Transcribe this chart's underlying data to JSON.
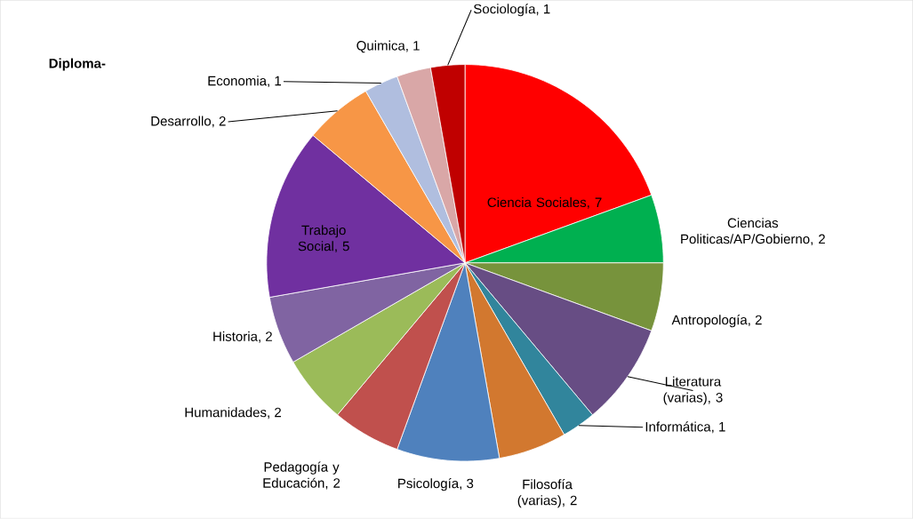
{
  "chart_data": {
    "type": "pie",
    "title": "Diploma-",
    "categories": [
      "Ciencia Sociales",
      "Ciencias Politicas/AP/Gobierno",
      "Antropología",
      "Literatura (varias)",
      "Informática",
      "Filosofía (varias)",
      "Psicología",
      "Pedagogía y Educación",
      "Humanidades",
      "Historia",
      "Trabajo Social",
      "Desarrollo",
      "Economia",
      "Quimica",
      "Sociología"
    ],
    "values": [
      7,
      2,
      2,
      3,
      1,
      2,
      3,
      2,
      2,
      2,
      5,
      2,
      1,
      1,
      1
    ],
    "colors": [
      "#ff0000",
      "#00b050",
      "#77933c",
      "#674d84",
      "#31859c",
      "#d2782f",
      "#4f81bd",
      "#c0504d",
      "#9bbb59",
      "#8064a2",
      "#7030a0",
      "#f79646",
      "#b0bedf",
      "#d9a7a7",
      "#c00000"
    ],
    "value_labels": [
      ", 7",
      ", 2",
      ", 2",
      ", 3",
      ", 1",
      ", 2",
      ", 3",
      ", 2",
      ", 2",
      ", 2",
      ", 5",
      ", 2",
      ", 1",
      ", 1",
      ", 1"
    ]
  }
}
